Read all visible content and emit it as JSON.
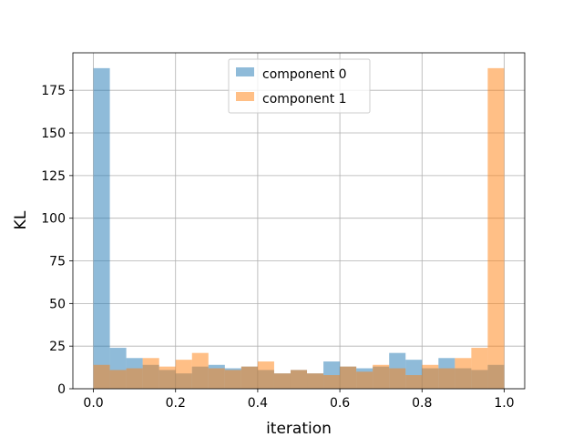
{
  "chart_data": {
    "type": "bar",
    "title": "",
    "xlabel": "iteration",
    "ylabel": "KL",
    "xlim": [
      -0.05,
      1.05
    ],
    "ylim": [
      0,
      197
    ],
    "xticks": [
      0.0,
      0.2,
      0.4,
      0.6,
      0.8,
      1.0
    ],
    "xtick_labels": [
      "0.0",
      "0.2",
      "0.4",
      "0.6",
      "0.8",
      "1.0"
    ],
    "yticks": [
      0,
      25,
      50,
      75,
      100,
      125,
      150,
      175
    ],
    "ytick_labels": [
      "0",
      "25",
      "50",
      "75",
      "100",
      "125",
      "150",
      "175"
    ],
    "grid": true,
    "legend_position": "top-center",
    "bin_edges": [
      0.0,
      0.04,
      0.08,
      0.12,
      0.16,
      0.2,
      0.24,
      0.28,
      0.32,
      0.36,
      0.4,
      0.44,
      0.48,
      0.52,
      0.56,
      0.6,
      0.64,
      0.68,
      0.72,
      0.76,
      0.8,
      0.84,
      0.88,
      0.92,
      0.96,
      1.0
    ],
    "series": [
      {
        "name": "component 0",
        "color": "#1f77b4",
        "opacity": 0.5,
        "values": [
          188,
          24,
          18,
          14,
          11,
          9,
          13,
          14,
          12,
          13,
          11,
          9,
          11,
          9,
          16,
          13,
          12,
          13,
          21,
          17,
          12,
          18,
          12,
          11,
          14
        ]
      },
      {
        "name": "component 1",
        "color": "#ff7f0e",
        "opacity": 0.5,
        "values": [
          14,
          11,
          12,
          18,
          13,
          17,
          21,
          12,
          11,
          13,
          16,
          9,
          11,
          9,
          8,
          13,
          10,
          14,
          12,
          8,
          14,
          12,
          18,
          24,
          188
        ]
      }
    ]
  }
}
